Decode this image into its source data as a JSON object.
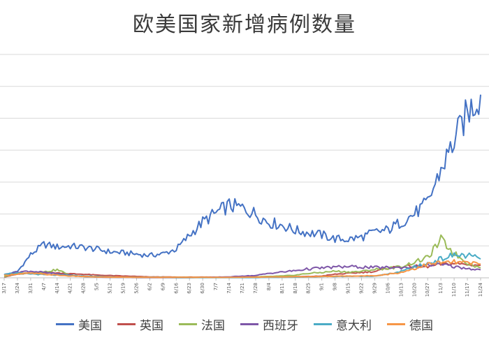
{
  "chart_data": {
    "type": "line",
    "title": "欧美国家新增病例数量",
    "xlabel": "",
    "ylabel": "",
    "legend_position": "bottom",
    "grid": true,
    "x": [
      "3/17",
      "3/24",
      "3/31",
      "4/7",
      "4/14",
      "4/21",
      "4/28",
      "5/5",
      "5/12",
      "5/19",
      "5/26",
      "6/2",
      "6/9",
      "6/16",
      "6/23",
      "6/30",
      "7/7",
      "7/14",
      "7/21",
      "7/28",
      "8/4",
      "8/11",
      "8/18",
      "8/25",
      "9/1",
      "9/8",
      "9/15",
      "9/22",
      "9/29",
      "10/6",
      "10/13",
      "10/20",
      "10/27",
      "11/3",
      "11/10",
      "11/17",
      "11/24"
    ],
    "series": [
      {
        "name": "美国",
        "color": "#4472C4",
        "values": [
          0.7,
          1.4,
          5.2,
          7.5,
          6.9,
          7.1,
          6.8,
          6.4,
          5.8,
          5.6,
          5.3,
          5.0,
          5.4,
          6.4,
          9.5,
          12.5,
          14.5,
          16.2,
          15.6,
          14.3,
          12.4,
          11.8,
          10.6,
          10.1,
          9.6,
          8.7,
          8.6,
          9.1,
          10.2,
          10.7,
          12.5,
          14.3,
          16.8,
          24.2,
          30.6,
          36.9,
          41.0
        ]
      },
      {
        "name": "英国",
        "color": "#C0504D",
        "values": [
          0.2,
          0.8,
          1.0,
          1.2,
          1.1,
          0.9,
          0.8,
          0.6,
          0.5,
          0.4,
          0.3,
          0.2,
          0.2,
          0.15,
          0.15,
          0.15,
          0.15,
          0.15,
          0.15,
          0.15,
          0.2,
          0.2,
          0.25,
          0.3,
          0.4,
          0.8,
          1.0,
          1.2,
          1.4,
          2.2,
          2.5,
          2.6,
          2.5,
          3.0,
          3.2,
          3.0,
          2.8
        ]
      },
      {
        "name": "法国",
        "color": "#9BBB59",
        "values": [
          0.3,
          0.9,
          1.1,
          1.3,
          1.8,
          0.6,
          0.3,
          0.2,
          0.1,
          0.1,
          0.1,
          0.1,
          0.1,
          0.1,
          0.1,
          0.1,
          0.1,
          0.1,
          0.15,
          0.2,
          0.3,
          0.4,
          0.6,
          1.0,
          1.2,
          1.5,
          1.3,
          1.4,
          1.9,
          2.1,
          2.5,
          3.5,
          4.5,
          8.5,
          5.5,
          3.3,
          2.2
        ]
      },
      {
        "name": "西班牙",
        "color": "#7E57A8",
        "values": [
          0.7,
          1.3,
          1.5,
          1.2,
          0.9,
          0.6,
          0.3,
          0.2,
          0.1,
          0.1,
          0.05,
          0.05,
          0.05,
          0.05,
          0.05,
          0.1,
          0.15,
          0.2,
          0.4,
          0.5,
          1.0,
          1.3,
          1.6,
          2.0,
          2.2,
          2.4,
          2.5,
          2.4,
          2.3,
          2.3,
          2.3,
          2.4,
          2.8,
          3.0,
          2.5,
          2.1,
          1.8
        ]
      },
      {
        "name": "意大利",
        "color": "#4BACC6",
        "values": [
          0.9,
          1.0,
          0.9,
          0.7,
          0.6,
          0.5,
          0.4,
          0.3,
          0.2,
          0.15,
          0.1,
          0.1,
          0.1,
          0.05,
          0.05,
          0.05,
          0.05,
          0.05,
          0.05,
          0.05,
          0.1,
          0.1,
          0.15,
          0.2,
          0.3,
          0.3,
          0.35,
          0.35,
          0.4,
          0.8,
          1.4,
          2.4,
          3.2,
          4.2,
          5.1,
          5.0,
          4.2
        ]
      },
      {
        "name": "德国",
        "color": "#F79646",
        "values": [
          0.5,
          0.9,
          1.0,
          0.8,
          0.6,
          0.4,
          0.3,
          0.2,
          0.15,
          0.15,
          0.1,
          0.1,
          0.1,
          0.1,
          0.1,
          0.1,
          0.1,
          0.1,
          0.15,
          0.15,
          0.2,
          0.2,
          0.25,
          0.25,
          0.3,
          0.35,
          0.4,
          0.4,
          0.5,
          0.8,
          1.2,
          2.1,
          3.0,
          3.4,
          3.5,
          3.3,
          3.1
        ]
      }
    ],
    "ylim": [
      0,
      50
    ]
  }
}
